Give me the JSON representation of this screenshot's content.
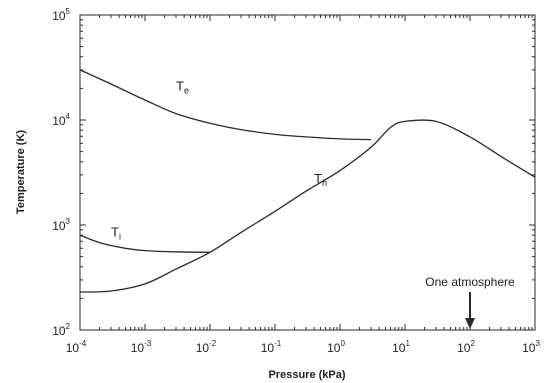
{
  "chart_data": {
    "type": "line",
    "title": "",
    "xlabel": "Pressure (kPa)",
    "ylabel": "Temperature (K)",
    "x_scale": "log",
    "y_scale": "log",
    "xlim": [
      0.0001,
      1000
    ],
    "ylim": [
      100,
      100000
    ],
    "x_ticks": [
      {
        "base": "10",
        "exp": "-4",
        "value": 0.0001
      },
      {
        "base": "10",
        "exp": "-3",
        "value": 0.001
      },
      {
        "base": "10",
        "exp": "-2",
        "value": 0.01
      },
      {
        "base": "10",
        "exp": "-1",
        "value": 0.1
      },
      {
        "base": "10",
        "exp": "0",
        "value": 1
      },
      {
        "base": "10",
        "exp": "1",
        "value": 10
      },
      {
        "base": "10",
        "exp": "2",
        "value": 100
      },
      {
        "base": "10",
        "exp": "3",
        "value": 1000
      }
    ],
    "y_ticks": [
      {
        "base": "10",
        "exp": "2",
        "value": 100
      },
      {
        "base": "10",
        "exp": "3",
        "value": 1000
      },
      {
        "base": "10",
        "exp": "4",
        "value": 10000
      },
      {
        "base": "10",
        "exp": "5",
        "value": 100000
      }
    ],
    "grid": false,
    "line_color": "#2a2a2a",
    "series": [
      {
        "name_base": "T",
        "name_sub": "e",
        "label_at": [
          0.003,
          19000
        ],
        "points": [
          [
            0.0001,
            30000
          ],
          [
            0.0003,
            22000
          ],
          [
            0.001,
            15500
          ],
          [
            0.003,
            11500
          ],
          [
            0.01,
            9300
          ],
          [
            0.03,
            8100
          ],
          [
            0.1,
            7300
          ],
          [
            0.3,
            6900
          ],
          [
            1,
            6600
          ],
          [
            3,
            6500
          ]
        ]
      },
      {
        "name_base": "T",
        "name_sub": "i",
        "label_at": [
          0.0003,
          780
        ],
        "points": [
          [
            0.0001,
            800
          ],
          [
            0.0002,
            680
          ],
          [
            0.0005,
            600
          ],
          [
            0.001,
            570
          ],
          [
            0.003,
            555
          ],
          [
            0.01,
            550
          ]
        ]
      },
      {
        "name_base": "T",
        "name_sub": "h",
        "label_at": [
          0.4,
          2500
        ],
        "points": [
          [
            0.0001,
            230
          ],
          [
            0.0003,
            235
          ],
          [
            0.001,
            275
          ],
          [
            0.003,
            380
          ],
          [
            0.01,
            550
          ],
          [
            0.03,
            850
          ],
          [
            0.1,
            1350
          ],
          [
            0.3,
            2100
          ],
          [
            1,
            3300
          ],
          [
            3,
            5500
          ],
          [
            6,
            8500
          ],
          [
            10,
            9700
          ],
          [
            30,
            9700
          ],
          [
            100,
            6900
          ],
          [
            300,
            4500
          ],
          [
            1000,
            2850
          ]
        ]
      }
    ],
    "annotation": {
      "text": "One atmosphere",
      "x": 100
    }
  }
}
